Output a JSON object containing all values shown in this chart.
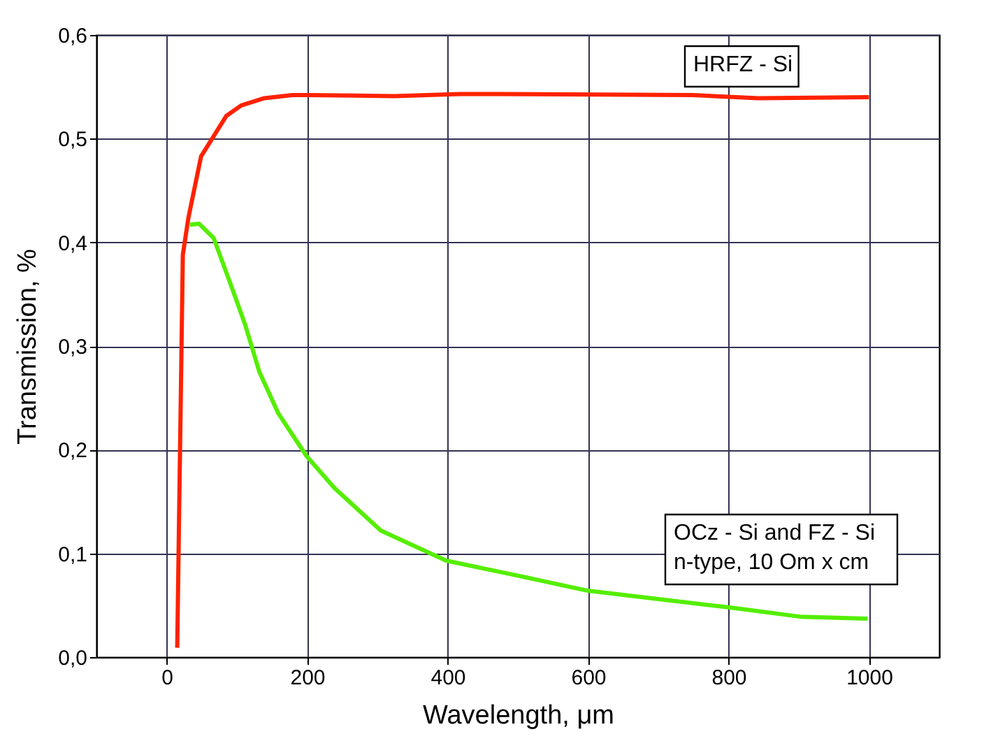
{
  "chart_data": {
    "type": "line",
    "xlabel": "Wavelength, μm",
    "ylabel": "Transmission, %",
    "xlim": [
      -100,
      1100
    ],
    "xticks": [
      0,
      200,
      400,
      600,
      800,
      1000
    ],
    "ylim": [
      0,
      0.6
    ],
    "yticks": [
      {
        "value": 0,
        "label": "0,0"
      },
      {
        "value": 0.1,
        "label": "0,1"
      },
      {
        "value": 0.2,
        "label": "0,2"
      },
      {
        "value": 0.3,
        "label": "0,3"
      },
      {
        "value": 0.4,
        "label": "0,4"
      },
      {
        "value": 0.5,
        "label": "0,5"
      },
      {
        "value": 0.6,
        "label": "0,6"
      }
    ],
    "grid": true,
    "series": [
      {
        "name": "HRFZ - Si",
        "color": "#ff2200",
        "x": [
          15,
          23,
          31,
          49,
          85,
          106,
          139,
          179,
          199,
          325,
          418,
          471,
          749,
          842,
          1000
        ],
        "values": [
          0.009,
          0.388,
          0.424,
          0.483,
          0.522,
          0.532,
          0.539,
          0.542,
          0.542,
          0.541,
          0.543,
          0.543,
          0.542,
          0.539,
          0.54
        ]
      },
      {
        "name": "OCz - Si and FZ - Si\nn-type, 10 Om x cm",
        "color": "#55ee00",
        "x": [
          33,
          46,
          67,
          93,
          112,
          132,
          159,
          199,
          239,
          305,
          398,
          490,
          600,
          800,
          902,
          998
        ],
        "values": [
          0.417,
          0.418,
          0.404,
          0.356,
          0.32,
          0.275,
          0.235,
          0.194,
          0.163,
          0.122,
          0.093,
          0.08,
          0.064,
          0.048,
          0.039,
          0.037
        ]
      }
    ]
  }
}
